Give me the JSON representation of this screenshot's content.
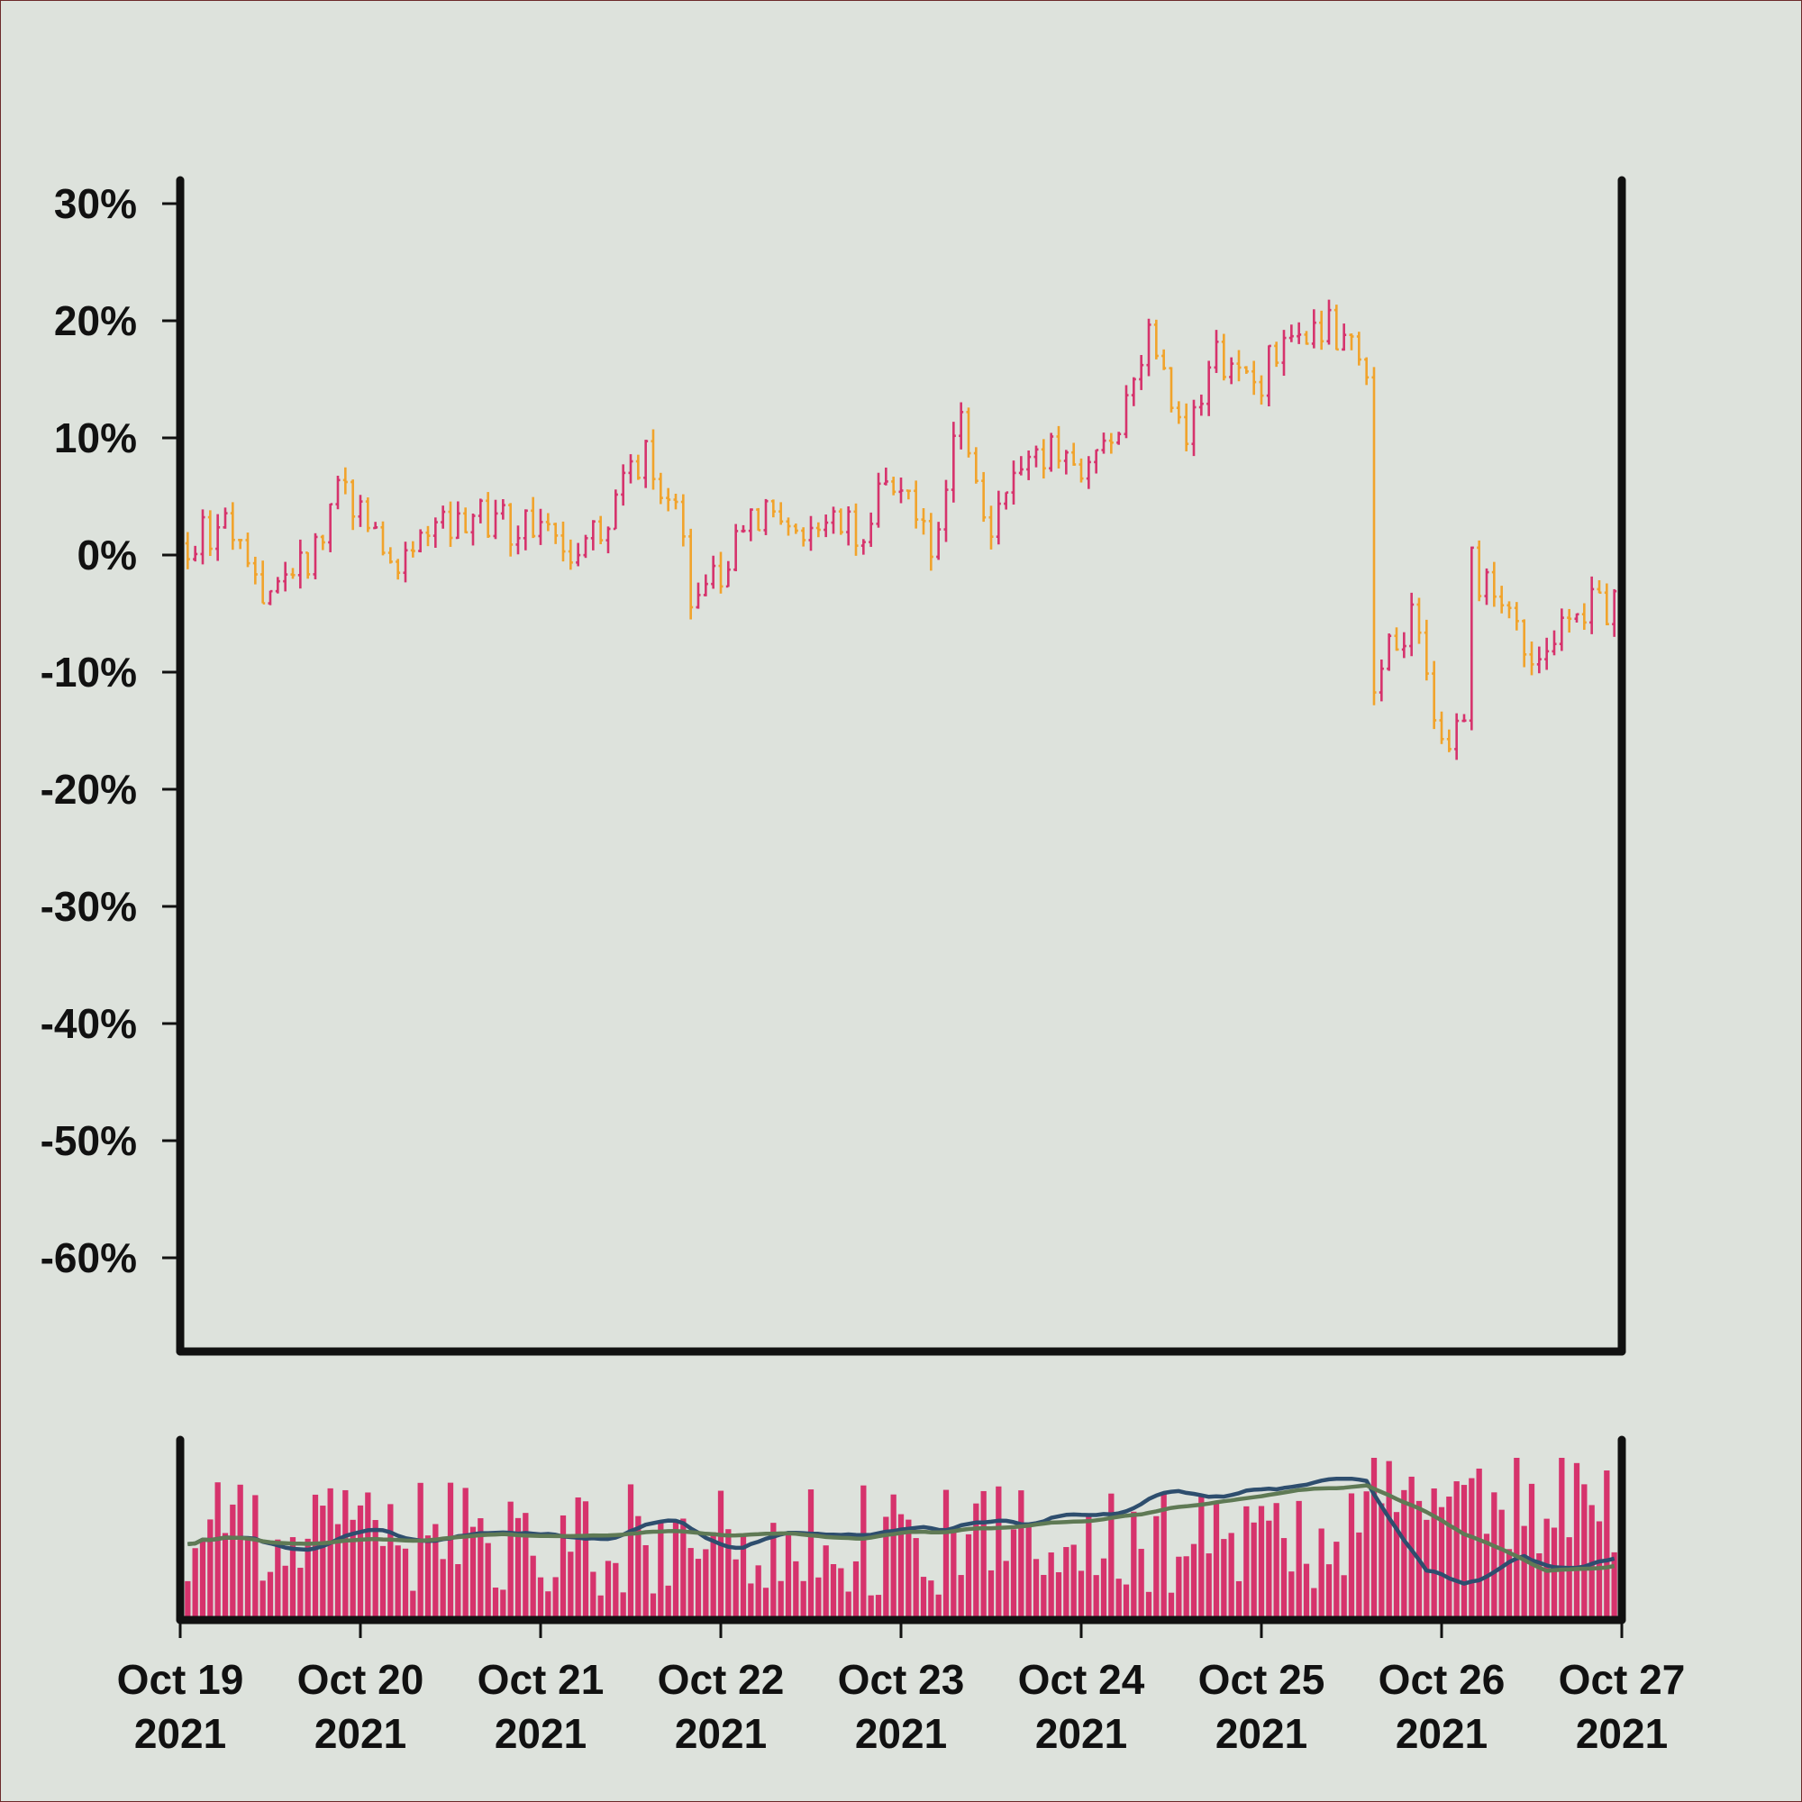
{
  "chart_data": [
    {
      "type": "ohlc",
      "panel": "price",
      "title": "",
      "xlabel": "",
      "ylabel": "",
      "ylim": [
        -0.68,
        0.32
      ],
      "y_format": "percent",
      "y_ticks": [
        0.3,
        0.2,
        0.1,
        0.0,
        -0.1,
        -0.2,
        -0.3,
        -0.4,
        -0.5,
        -0.6
      ],
      "y_tick_labels": [
        "30%",
        "20%",
        "10%",
        "0%",
        "-10%",
        "-20%",
        "-30%",
        "-40%",
        "-50%",
        "-60%"
      ],
      "x_range": [
        "2021-10-19",
        "2021-10-27"
      ],
      "x_ticks": [
        {
          "date": "2021-10-19",
          "line1": "Oct 19",
          "line2": "2021"
        },
        {
          "date": "2021-10-20",
          "line1": "Oct 20",
          "line2": "2021"
        },
        {
          "date": "2021-10-21",
          "line1": "Oct 21",
          "line2": "2021"
        },
        {
          "date": "2021-10-22",
          "line1": "Oct 22",
          "line2": "2021"
        },
        {
          "date": "2021-10-23",
          "line1": "Oct 23",
          "line2": "2021"
        },
        {
          "date": "2021-10-24",
          "line1": "Oct 24",
          "line2": "2021"
        },
        {
          "date": "2021-10-25",
          "line1": "Oct 25",
          "line2": "2021"
        },
        {
          "date": "2021-10-26",
          "line1": "Oct 26",
          "line2": "2021"
        },
        {
          "date": "2021-10-27",
          "line1": "Oct 27",
          "line2": "2021"
        }
      ],
      "bar_interval_hours": 1,
      "close_path_anchors": [
        [
          "2021-10-19 00:00",
          0.01
        ],
        [
          "2021-10-19 06:00",
          0.02
        ],
        [
          "2021-10-19 12:00",
          -0.04
        ],
        [
          "2021-10-19 18:00",
          0.0
        ],
        [
          "2021-10-19 21:00",
          0.07
        ],
        [
          "2021-10-20 01:00",
          0.03
        ],
        [
          "2021-10-20 04:00",
          -0.01
        ],
        [
          "2021-10-20 10:00",
          0.03
        ],
        [
          "2021-10-20 16:00",
          0.03
        ],
        [
          "2021-10-21 00:00",
          0.02
        ],
        [
          "2021-10-21 06:00",
          0.0
        ],
        [
          "2021-10-21 12:00",
          0.07
        ],
        [
          "2021-10-21 14:00",
          0.09
        ],
        [
          "2021-10-21 18:00",
          0.04
        ],
        [
          "2021-10-21 20:00",
          -0.03
        ],
        [
          "2021-10-22 00:00",
          -0.02
        ],
        [
          "2021-10-22 04:00",
          0.04
        ],
        [
          "2021-10-22 12:00",
          0.02
        ],
        [
          "2021-10-22 18:00",
          0.02
        ],
        [
          "2021-10-23 00:00",
          0.07
        ],
        [
          "2021-10-23 04:00",
          0.01
        ],
        [
          "2021-10-23 08:00",
          0.11
        ],
        [
          "2021-10-23 12:00",
          0.02
        ],
        [
          "2021-10-23 18:00",
          0.09
        ],
        [
          "2021-10-24 00:00",
          0.08
        ],
        [
          "2021-10-24 06:00",
          0.12
        ],
        [
          "2021-10-24 09:00",
          0.18
        ],
        [
          "2021-10-24 14:00",
          0.11
        ],
        [
          "2021-10-24 18:00",
          0.17
        ],
        [
          "2021-10-25 00:00",
          0.15
        ],
        [
          "2021-10-25 04:00",
          0.2
        ],
        [
          "2021-10-25 12:00",
          0.19
        ],
        [
          "2021-10-25 14:00",
          0.14
        ],
        [
          "2021-10-25 15:00",
          -0.11
        ],
        [
          "2021-10-25 20:00",
          -0.05
        ],
        [
          "2021-10-26 00:00",
          -0.16
        ],
        [
          "2021-10-26 03:00",
          -0.14
        ],
        [
          "2021-10-26 04:00",
          -0.01
        ],
        [
          "2021-10-26 12:00",
          -0.08
        ],
        [
          "2021-10-26 18:00",
          -0.04
        ],
        [
          "2021-10-27 00:00",
          -0.05
        ]
      ],
      "colors": {
        "up": "#d6336c",
        "down": "#f1a32b",
        "axis": "#111111",
        "background": "#dde2dc"
      }
    },
    {
      "type": "bar",
      "panel": "volume",
      "title": "",
      "xlabel": "",
      "ylabel": "",
      "y_ticks": [],
      "series": [
        {
          "kind": "bar",
          "color": "#d6336c"
        },
        {
          "kind": "line",
          "color": "#2e4e6e"
        },
        {
          "kind": "line",
          "color": "#5f7a55"
        }
      ],
      "colors": {
        "bars": "#d6336c",
        "ma_fast": "#2e4e6e",
        "ma_slow": "#5f7a55"
      }
    }
  ]
}
